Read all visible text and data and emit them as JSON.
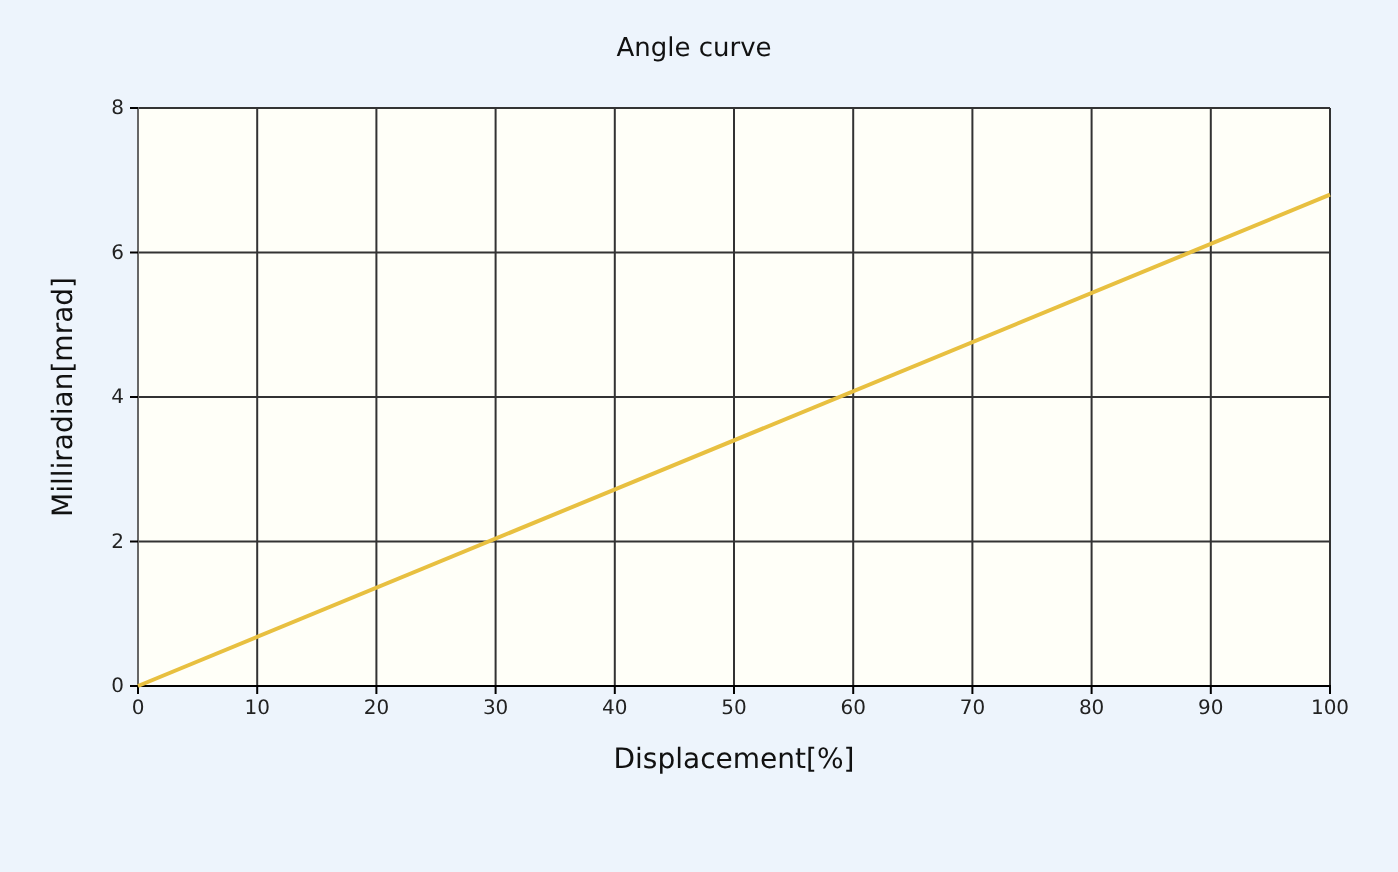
{
  "chart_data": {
    "type": "line",
    "title": "Angle curve",
    "xlabel": "Displacement[%]",
    "ylabel": "Milliradian[mrad]",
    "x": [
      0,
      100
    ],
    "series": [
      {
        "color": "#e8c040",
        "values": [
          0,
          6.8
        ]
      }
    ],
    "xlim": [
      0,
      100
    ],
    "xticks": [
      0,
      10,
      20,
      30,
      40,
      50,
      60,
      70,
      80,
      90,
      100
    ],
    "ylim": [
      0,
      8
    ],
    "yticks": [
      0,
      2,
      4,
      6,
      8
    ],
    "grid": true,
    "marker": "none",
    "line_style": "solid"
  }
}
